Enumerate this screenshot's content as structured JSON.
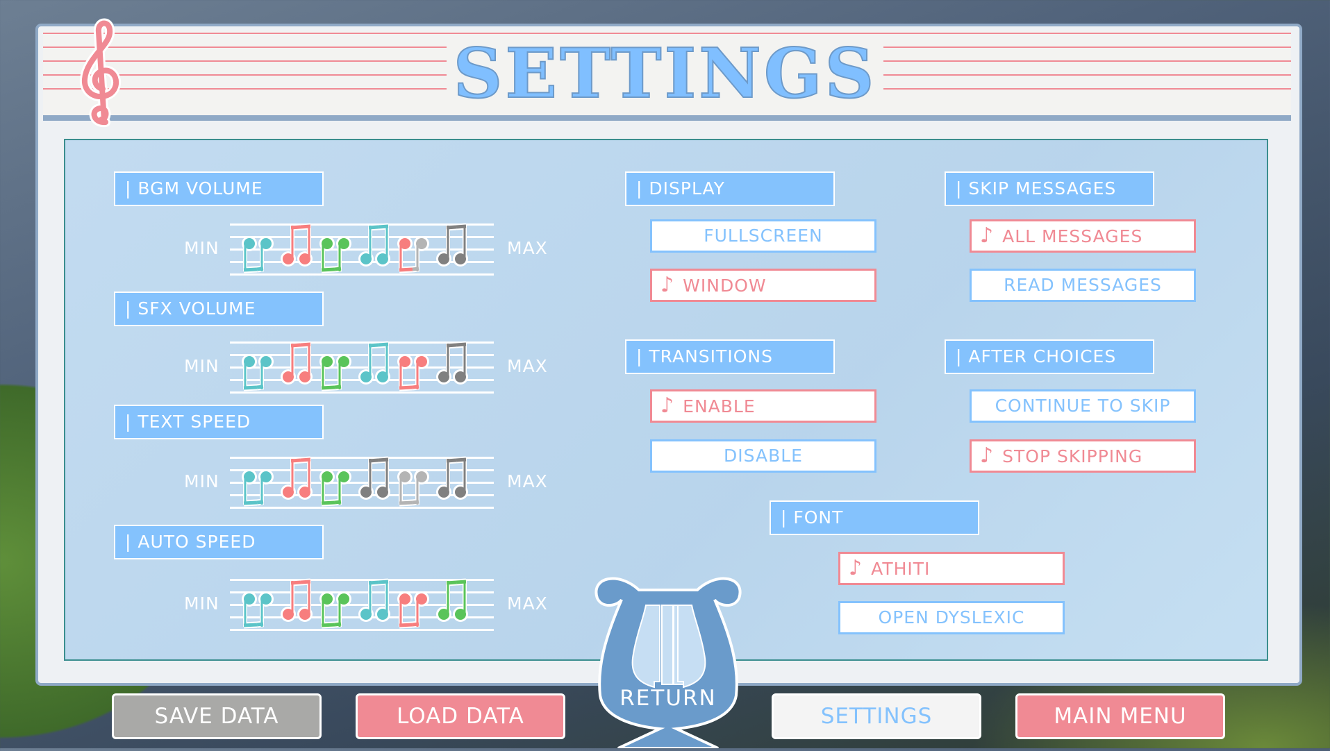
{
  "title": "SETTINGS",
  "colors": {
    "accent_blue": "#84c2fd",
    "accent_pink": "#f08a94",
    "note_teal": "#5bc4c8",
    "note_red": "#f77e7e",
    "note_green": "#5ac45a",
    "note_grey": "#888888"
  },
  "icons": {
    "clef": "treble-clef-icon",
    "selected": "music-note-icon",
    "return": "lyre-icon"
  },
  "sliders": [
    {
      "label": "| BGM VOLUME",
      "min": "MIN",
      "max": "MAX",
      "level": 0.75
    },
    {
      "label": "| SFX VOLUME",
      "min": "MIN",
      "max": "MAX",
      "level": 0.83
    },
    {
      "label": "| TEXT SPEED",
      "min": "MIN",
      "max": "MAX",
      "level": 0.54
    },
    {
      "label": "| AUTO SPEED",
      "min": "MIN",
      "max": "MAX",
      "level": 1.0
    }
  ],
  "display": {
    "label": "| DISPLAY",
    "options": [
      {
        "label": "FULLSCREEN",
        "selected": false
      },
      {
        "label": "WINDOW",
        "selected": true
      }
    ]
  },
  "transitions": {
    "label": "| TRANSITIONS",
    "options": [
      {
        "label": "ENABLE",
        "selected": true
      },
      {
        "label": "DISABLE",
        "selected": false
      }
    ]
  },
  "skip": {
    "label": "| SKIP MESSAGES",
    "options": [
      {
        "label": "ALL MESSAGES",
        "selected": true
      },
      {
        "label": "READ MESSAGES",
        "selected": false
      }
    ]
  },
  "after": {
    "label": "| AFTER CHOICES",
    "options": [
      {
        "label": "CONTINUE TO SKIP",
        "selected": false
      },
      {
        "label": "STOP SKIPPING",
        "selected": true
      }
    ]
  },
  "font": {
    "label": "| FONT",
    "options": [
      {
        "label": "ATHITI",
        "selected": true
      },
      {
        "label": "OPEN DYSLEXIC",
        "selected": false
      }
    ]
  },
  "note_glyph": "♪",
  "return_label": "RETURN",
  "bottom": {
    "save": "SAVE DATA",
    "load": "LOAD DATA",
    "settings": "SETTINGS",
    "main_menu": "MAIN MENU"
  }
}
